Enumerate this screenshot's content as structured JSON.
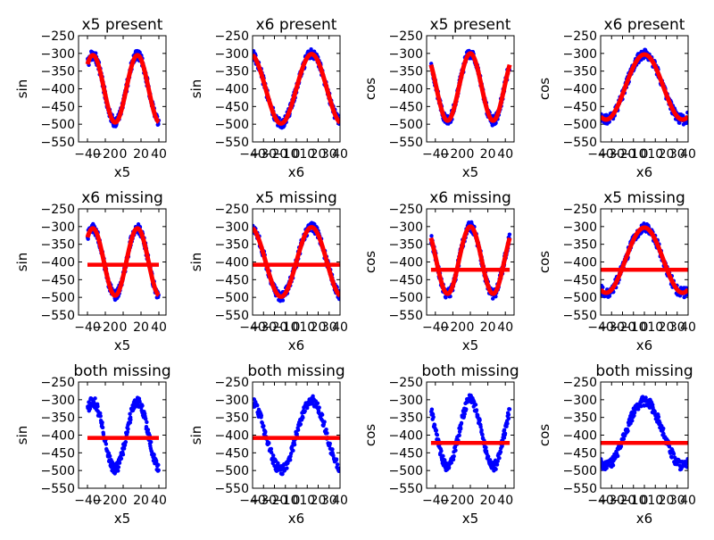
{
  "chart_data": [
    {
      "type": "scatter",
      "title": "x5 present",
      "xlabel": "x5",
      "ylabel": "sin",
      "xlim": [
        -50,
        48
      ],
      "ylim": [
        -550,
        -250
      ],
      "xticks": [
        "−40",
        "−20",
        "0",
        "20",
        "40"
      ],
      "yticks": [
        "−250",
        "−300",
        "−350",
        "−400",
        "−450",
        "−500",
        "−550"
      ],
      "series": [
        {
          "color": "#0000ff",
          "func": "sin",
          "x_range": [
            -40,
            40
          ],
          "amplitude": 95,
          "offset": -400,
          "period": 50,
          "phase": 3.5
        },
        {
          "color": "#ff0000",
          "kind": "fit-curve",
          "func": "sin",
          "x_range": [
            -40,
            40
          ],
          "amplitude": 95,
          "offset": -400,
          "period": 50,
          "phase": 3.5
        }
      ]
    },
    {
      "type": "scatter",
      "title": "x6 present",
      "xlabel": "x6",
      "ylabel": "sin",
      "xlim": [
        -40,
        40
      ],
      "ylim": [
        -550,
        -250
      ],
      "xticks": [
        "−40",
        "−30",
        "−20",
        "−10",
        "0",
        "10",
        "20",
        "30",
        "40"
      ],
      "yticks": [
        "−250",
        "−300",
        "−350",
        "−400",
        "−450",
        "−500",
        "−550"
      ],
      "series": [
        {
          "color": "#0000ff",
          "func": "sin",
          "x_range": [
            -40,
            40
          ],
          "amplitude": 98,
          "offset": -400,
          "period": 56,
          "phase": 0
        },
        {
          "color": "#ff0000",
          "kind": "fit-curve",
          "func": "sin",
          "x_range": [
            -40,
            40
          ],
          "amplitude": 98,
          "offset": -400,
          "period": 56,
          "phase": 0
        }
      ]
    },
    {
      "type": "scatter",
      "title": "x5 present",
      "xlabel": "x5",
      "ylabel": "cos",
      "xlim": [
        -50,
        50
      ],
      "ylim": [
        -550,
        -250
      ],
      "xticks": [
        "−40",
        "−20",
        "0",
        "20",
        "40"
      ],
      "yticks": [
        "−250",
        "−300",
        "−350",
        "−400",
        "−450",
        "−500",
        "−550"
      ],
      "series": [
        {
          "color": "#0000ff",
          "func": "cos",
          "x_range": [
            -45,
            45
          ],
          "amplitude": 95,
          "offset": -395,
          "period": 52,
          "phase": 0
        },
        {
          "color": "#ff0000",
          "kind": "fit-curve",
          "func": "cos",
          "x_range": [
            -45,
            45
          ],
          "amplitude": 95,
          "offset": -395,
          "period": 52,
          "phase": 0
        }
      ]
    },
    {
      "type": "scatter",
      "title": "x6 present",
      "xlabel": "x6",
      "ylabel": "cos",
      "xlim": [
        -40,
        40
      ],
      "ylim": [
        -550,
        -250
      ],
      "xticks": [
        "−40",
        "−30",
        "−20",
        "−10",
        "0",
        "10",
        "20",
        "30",
        "40"
      ],
      "yticks": [
        "−250",
        "−300",
        "−350",
        "−400",
        "−450",
        "−500",
        "−550"
      ],
      "series": [
        {
          "color": "#0000ff",
          "func": "cos",
          "x_range": [
            -40,
            40
          ],
          "amplitude": 92,
          "offset": -395,
          "period": 70,
          "phase": 0
        },
        {
          "color": "#ff0000",
          "kind": "fit-curve",
          "func": "cos",
          "x_range": [
            -40,
            40
          ],
          "amplitude": 92,
          "offset": -395,
          "period": 70,
          "phase": 0
        }
      ]
    },
    {
      "type": "scatter",
      "title": "x6 missing",
      "xlabel": "x5",
      "ylabel": "sin",
      "xlim": [
        -50,
        48
      ],
      "ylim": [
        -550,
        -250
      ],
      "xticks": [
        "−40",
        "−20",
        "0",
        "20",
        "40"
      ],
      "yticks": [
        "−250",
        "−300",
        "−350",
        "−400",
        "−450",
        "−500",
        "−550"
      ],
      "series": [
        {
          "color": "#0000ff",
          "func": "sin",
          "x_range": [
            -40,
            40
          ],
          "amplitude": 95,
          "offset": -400,
          "period": 50,
          "phase": 3.5
        },
        {
          "color": "#ff0000",
          "kind": "fit-curve",
          "func": "sin",
          "x_range": [
            -40,
            40
          ],
          "amplitude": 95,
          "offset": -400,
          "period": 50,
          "phase": 3.5
        },
        {
          "color": "#ff0000",
          "kind": "constant-line",
          "y": -408,
          "x_range": [
            -40,
            40
          ]
        }
      ]
    },
    {
      "type": "scatter",
      "title": "x5 missing",
      "xlabel": "x6",
      "ylabel": "sin",
      "xlim": [
        -40,
        40
      ],
      "ylim": [
        -550,
        -250
      ],
      "xticks": [
        "−40",
        "−30",
        "−20",
        "−10",
        "0",
        "10",
        "20",
        "30",
        "40"
      ],
      "yticks": [
        "−250",
        "−300",
        "−350",
        "−400",
        "−450",
        "−500",
        "−550"
      ],
      "series": [
        {
          "color": "#0000ff",
          "func": "sin",
          "x_range": [
            -40,
            40
          ],
          "amplitude": 98,
          "offset": -400,
          "period": 56,
          "phase": 0
        },
        {
          "color": "#ff0000",
          "kind": "fit-curve",
          "func": "sin",
          "x_range": [
            -40,
            40
          ],
          "amplitude": 98,
          "offset": -400,
          "period": 56,
          "phase": 0
        },
        {
          "color": "#ff0000",
          "kind": "constant-line",
          "y": -408,
          "x_range": [
            -40,
            40
          ]
        }
      ]
    },
    {
      "type": "scatter",
      "title": "x6 missing",
      "xlabel": "x5",
      "ylabel": "cos",
      "xlim": [
        -50,
        50
      ],
      "ylim": [
        -550,
        -250
      ],
      "xticks": [
        "−40",
        "−20",
        "0",
        "20",
        "40"
      ],
      "yticks": [
        "−250",
        "−300",
        "−350",
        "−400",
        "−450",
        "−500",
        "−550"
      ],
      "series": [
        {
          "color": "#0000ff",
          "func": "cos",
          "x_range": [
            -45,
            45
          ],
          "amplitude": 95,
          "offset": -395,
          "period": 52,
          "phase": 0
        },
        {
          "color": "#ff0000",
          "kind": "fit-curve",
          "func": "cos",
          "x_range": [
            -45,
            45
          ],
          "amplitude": 95,
          "offset": -395,
          "period": 52,
          "phase": 0
        },
        {
          "color": "#ff0000",
          "kind": "constant-line",
          "y": -422,
          "x_range": [
            -45,
            45
          ]
        }
      ]
    },
    {
      "type": "scatter",
      "title": "x5 missing",
      "xlabel": "x6",
      "ylabel": "cos",
      "xlim": [
        -40,
        40
      ],
      "ylim": [
        -550,
        -250
      ],
      "xticks": [
        "−40",
        "−30",
        "−20",
        "−10",
        "0",
        "10",
        "20",
        "30",
        "40"
      ],
      "yticks": [
        "−250",
        "−300",
        "−350",
        "−400",
        "−450",
        "−500",
        "−550"
      ],
      "series": [
        {
          "color": "#0000ff",
          "func": "cos",
          "x_range": [
            -40,
            40
          ],
          "amplitude": 92,
          "offset": -395,
          "period": 70,
          "phase": 0
        },
        {
          "color": "#ff0000",
          "kind": "fit-curve",
          "func": "cos",
          "x_range": [
            -40,
            40
          ],
          "amplitude": 92,
          "offset": -395,
          "period": 70,
          "phase": 0
        },
        {
          "color": "#ff0000",
          "kind": "constant-line",
          "y": -422,
          "x_range": [
            -40,
            40
          ]
        }
      ]
    },
    {
      "type": "scatter",
      "title": "both missing",
      "xlabel": "x5",
      "ylabel": "sin",
      "xlim": [
        -50,
        48
      ],
      "ylim": [
        -550,
        -250
      ],
      "xticks": [
        "−40",
        "−20",
        "0",
        "20",
        "40"
      ],
      "yticks": [
        "−250",
        "−300",
        "−350",
        "−400",
        "−450",
        "−500",
        "−550"
      ],
      "series": [
        {
          "color": "#0000ff",
          "func": "sin",
          "x_range": [
            -40,
            40
          ],
          "amplitude": 95,
          "offset": -400,
          "period": 50,
          "phase": 3.5
        },
        {
          "color": "#ff0000",
          "kind": "constant-line",
          "y": -408,
          "x_range": [
            -40,
            40
          ]
        }
      ]
    },
    {
      "type": "scatter",
      "title": "both missing",
      "xlabel": "x6",
      "ylabel": "sin",
      "xlim": [
        -40,
        40
      ],
      "ylim": [
        -550,
        -250
      ],
      "xticks": [
        "−40",
        "−30",
        "−20",
        "−10",
        "0",
        "10",
        "20",
        "30",
        "40"
      ],
      "yticks": [
        "−250",
        "−300",
        "−350",
        "−400",
        "−450",
        "−500",
        "−550"
      ],
      "series": [
        {
          "color": "#0000ff",
          "func": "sin",
          "x_range": [
            -40,
            40
          ],
          "amplitude": 98,
          "offset": -400,
          "period": 56,
          "phase": 0
        },
        {
          "color": "#ff0000",
          "kind": "constant-line",
          "y": -408,
          "x_range": [
            -40,
            40
          ]
        }
      ]
    },
    {
      "type": "scatter",
      "title": "both missing",
      "xlabel": "x5",
      "ylabel": "cos",
      "xlim": [
        -50,
        50
      ],
      "ylim": [
        -550,
        -250
      ],
      "xticks": [
        "−40",
        "−20",
        "0",
        "20",
        "40"
      ],
      "yticks": [
        "−250",
        "−300",
        "−350",
        "−400",
        "−450",
        "−500",
        "−550"
      ],
      "series": [
        {
          "color": "#0000ff",
          "func": "cos",
          "x_range": [
            -45,
            45
          ],
          "amplitude": 95,
          "offset": -395,
          "period": 52,
          "phase": 0
        },
        {
          "color": "#ff0000",
          "kind": "constant-line",
          "y": -422,
          "x_range": [
            -45,
            45
          ]
        }
      ]
    },
    {
      "type": "scatter",
      "title": "both missing",
      "xlabel": "x6",
      "ylabel": "cos",
      "xlim": [
        -40,
        40
      ],
      "ylim": [
        -550,
        -250
      ],
      "xticks": [
        "−40",
        "−30",
        "−20",
        "−10",
        "0",
        "10",
        "20",
        "30",
        "40"
      ],
      "yticks": [
        "−250",
        "−300",
        "−350",
        "−400",
        "−450",
        "−500",
        "−550"
      ],
      "series": [
        {
          "color": "#0000ff",
          "func": "cos",
          "x_range": [
            -40,
            40
          ],
          "amplitude": 92,
          "offset": -395,
          "period": 70,
          "phase": 0
        },
        {
          "color": "#ff0000",
          "kind": "constant-line",
          "y": -422,
          "x_range": [
            -40,
            40
          ]
        }
      ]
    }
  ]
}
